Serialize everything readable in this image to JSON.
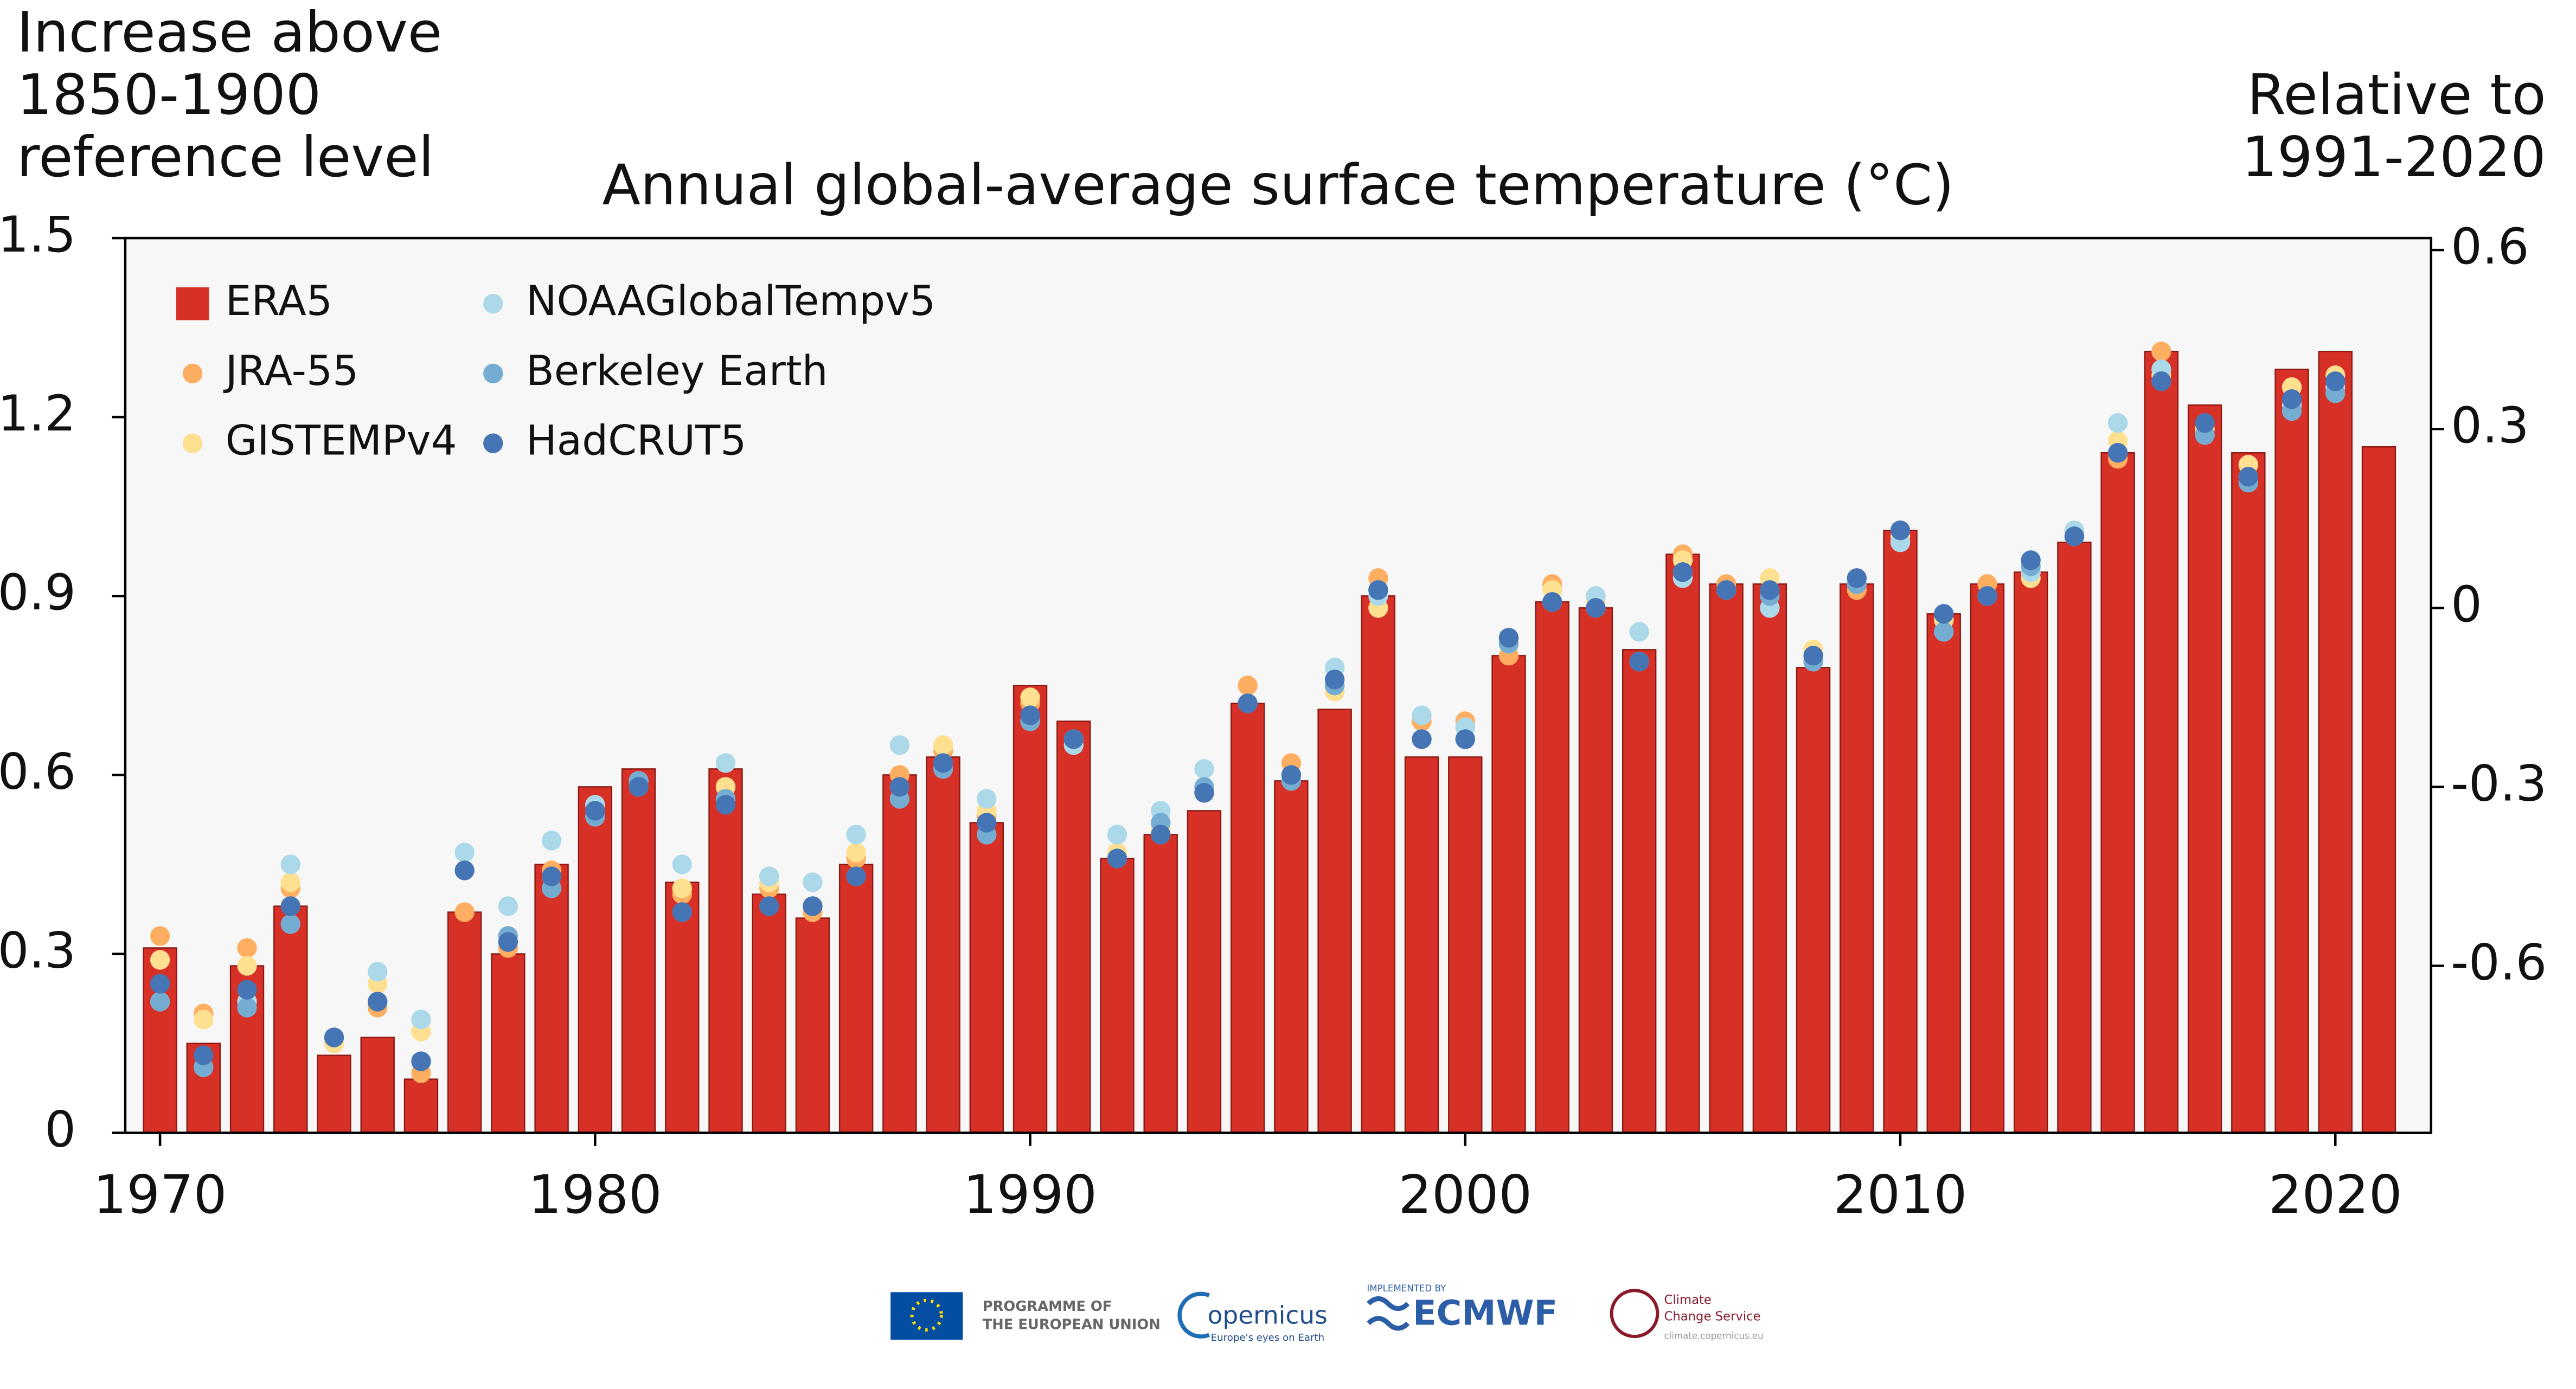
{
  "chart_data": {
    "type": "bar",
    "title": "Annual global-average surface temperature (°C)",
    "ylabel": [
      "Increase above",
      "1850-1900",
      "reference level"
    ],
    "y2label": [
      "Relative to",
      "1991-2020"
    ],
    "x": [
      1970,
      1971,
      1972,
      1973,
      1974,
      1975,
      1976,
      1977,
      1978,
      1979,
      1980,
      1981,
      1982,
      1983,
      1984,
      1985,
      1986,
      1987,
      1988,
      1989,
      1990,
      1991,
      1992,
      1993,
      1994,
      1995,
      1996,
      1997,
      1998,
      1999,
      2000,
      2001,
      2002,
      2003,
      2004,
      2005,
      2006,
      2007,
      2008,
      2009,
      2010,
      2011,
      2012,
      2013,
      2014,
      2015,
      2016,
      2017,
      2018,
      2019,
      2020,
      2021
    ],
    "xlim": [
      1969.2,
      2022.2
    ],
    "xticks": [
      1970,
      1980,
      1990,
      2000,
      2010,
      2020
    ],
    "ylim": [
      0,
      1.5
    ],
    "yticks": [
      0,
      0.3,
      0.6,
      0.9,
      1.2,
      1.5
    ],
    "y2lim": [
      -0.88,
      0.62
    ],
    "y2ticks": [
      -0.6,
      -0.3,
      0,
      0.3,
      0.6
    ],
    "legend": "upper left",
    "series": [
      {
        "name": "ERA5",
        "type": "bar",
        "color": "#d73027",
        "values": [
          0.31,
          0.15,
          0.28,
          0.38,
          0.13,
          0.16,
          0.09,
          0.37,
          0.3,
          0.45,
          0.58,
          0.61,
          0.42,
          0.61,
          0.4,
          0.36,
          0.45,
          0.6,
          0.63,
          0.52,
          0.75,
          0.69,
          0.46,
          0.5,
          0.54,
          0.72,
          0.59,
          0.71,
          0.9,
          0.63,
          0.63,
          0.8,
          0.89,
          0.88,
          0.81,
          0.97,
          0.92,
          0.92,
          0.78,
          0.92,
          1.01,
          0.87,
          0.92,
          0.94,
          0.99,
          1.14,
          1.31,
          1.22,
          1.14,
          1.28,
          1.31,
          1.15
        ]
      },
      {
        "name": "JRA-55",
        "type": "scatter",
        "color": "#fdae61",
        "values": [
          0.33,
          0.2,
          0.31,
          0.41,
          0.15,
          0.21,
          0.1,
          0.37,
          0.31,
          0.44,
          0.55,
          0.58,
          0.4,
          0.58,
          0.41,
          0.37,
          0.46,
          0.6,
          0.64,
          0.53,
          0.72,
          0.66,
          0.47,
          0.5,
          0.57,
          0.75,
          0.62,
          0.74,
          0.93,
          0.69,
          0.69,
          0.8,
          0.92,
          0.88,
          0.79,
          0.97,
          0.92,
          0.91,
          0.81,
          0.91,
          0.99,
          0.86,
          0.92,
          0.94,
          1.0,
          1.13,
          1.31,
          1.18,
          1.1,
          1.25,
          1.24,
          null
        ]
      },
      {
        "name": "GISTEMPv4",
        "type": "scatter",
        "color": "#fee090",
        "values": [
          0.29,
          0.19,
          0.28,
          0.42,
          0.15,
          0.25,
          0.17,
          0.44,
          0.33,
          0.43,
          0.53,
          0.59,
          0.41,
          0.58,
          0.42,
          0.38,
          0.47,
          0.58,
          0.65,
          0.54,
          0.73,
          0.66,
          0.47,
          0.51,
          0.58,
          0.72,
          0.6,
          0.74,
          0.88,
          0.66,
          0.66,
          0.82,
          0.91,
          0.89,
          0.79,
          0.96,
          0.91,
          0.93,
          0.81,
          0.93,
          1.0,
          0.86,
          0.9,
          0.93,
          1.01,
          1.16,
          1.27,
          1.18,
          1.12,
          1.25,
          1.27,
          null
        ]
      },
      {
        "name": "NOAAGlobalTempv5",
        "type": "scatter",
        "color": "#abd9e9",
        "values": [
          0.22,
          0.11,
          0.22,
          0.45,
          0.16,
          0.27,
          0.19,
          0.47,
          0.38,
          0.49,
          0.55,
          0.59,
          0.45,
          0.62,
          0.43,
          0.42,
          0.5,
          0.65,
          0.62,
          0.56,
          0.69,
          0.65,
          0.5,
          0.54,
          0.61,
          0.72,
          0.59,
          0.78,
          0.9,
          0.7,
          0.68,
          0.83,
          0.89,
          0.9,
          0.84,
          0.93,
          0.91,
          0.88,
          0.79,
          0.92,
          0.99,
          0.84,
          0.9,
          0.94,
          1.01,
          1.19,
          1.28,
          1.17,
          1.1,
          1.22,
          1.25,
          null
        ]
      },
      {
        "name": "Berkeley Earth",
        "type": "scatter",
        "color": "#74add1",
        "values": [
          0.22,
          0.11,
          0.21,
          0.35,
          0.16,
          0.22,
          0.12,
          0.44,
          0.33,
          0.41,
          0.53,
          0.59,
          0.37,
          0.56,
          0.38,
          0.38,
          0.43,
          0.56,
          0.61,
          0.5,
          0.69,
          0.66,
          0.46,
          0.52,
          0.58,
          0.72,
          0.59,
          0.75,
          0.91,
          0.66,
          0.66,
          0.82,
          0.89,
          0.88,
          0.79,
          0.94,
          0.91,
          0.9,
          0.79,
          0.92,
          1.01,
          0.84,
          0.9,
          0.95,
          1.0,
          1.14,
          1.26,
          1.17,
          1.09,
          1.21,
          1.24,
          null
        ]
      },
      {
        "name": "HadCRUT5",
        "type": "scatter",
        "color": "#4575b4",
        "values": [
          0.25,
          0.13,
          0.24,
          0.38,
          0.16,
          0.22,
          0.12,
          0.44,
          0.32,
          0.43,
          0.54,
          0.58,
          0.37,
          0.55,
          0.38,
          0.38,
          0.43,
          0.58,
          0.62,
          0.52,
          0.7,
          0.66,
          0.46,
          0.5,
          0.57,
          0.72,
          0.6,
          0.76,
          0.91,
          0.66,
          0.66,
          0.83,
          0.89,
          0.88,
          0.79,
          0.94,
          0.91,
          0.91,
          0.8,
          0.93,
          1.01,
          0.87,
          0.9,
          0.96,
          1.0,
          1.14,
          1.26,
          1.19,
          1.1,
          1.23,
          1.26,
          null
        ]
      }
    ]
  },
  "footer": {
    "eu": [
      "PROGRAMME OF",
      "THE EUROPEAN UNION"
    ],
    "copernicus": "opernicus",
    "copernicus_tagline": "Europe's eyes on Earth",
    "implemented": "IMPLEMENTED BY",
    "ecmwf": "ECMWF",
    "c3s": [
      "Climate",
      "Change Service"
    ],
    "url": "climate.copernicus.eu"
  }
}
